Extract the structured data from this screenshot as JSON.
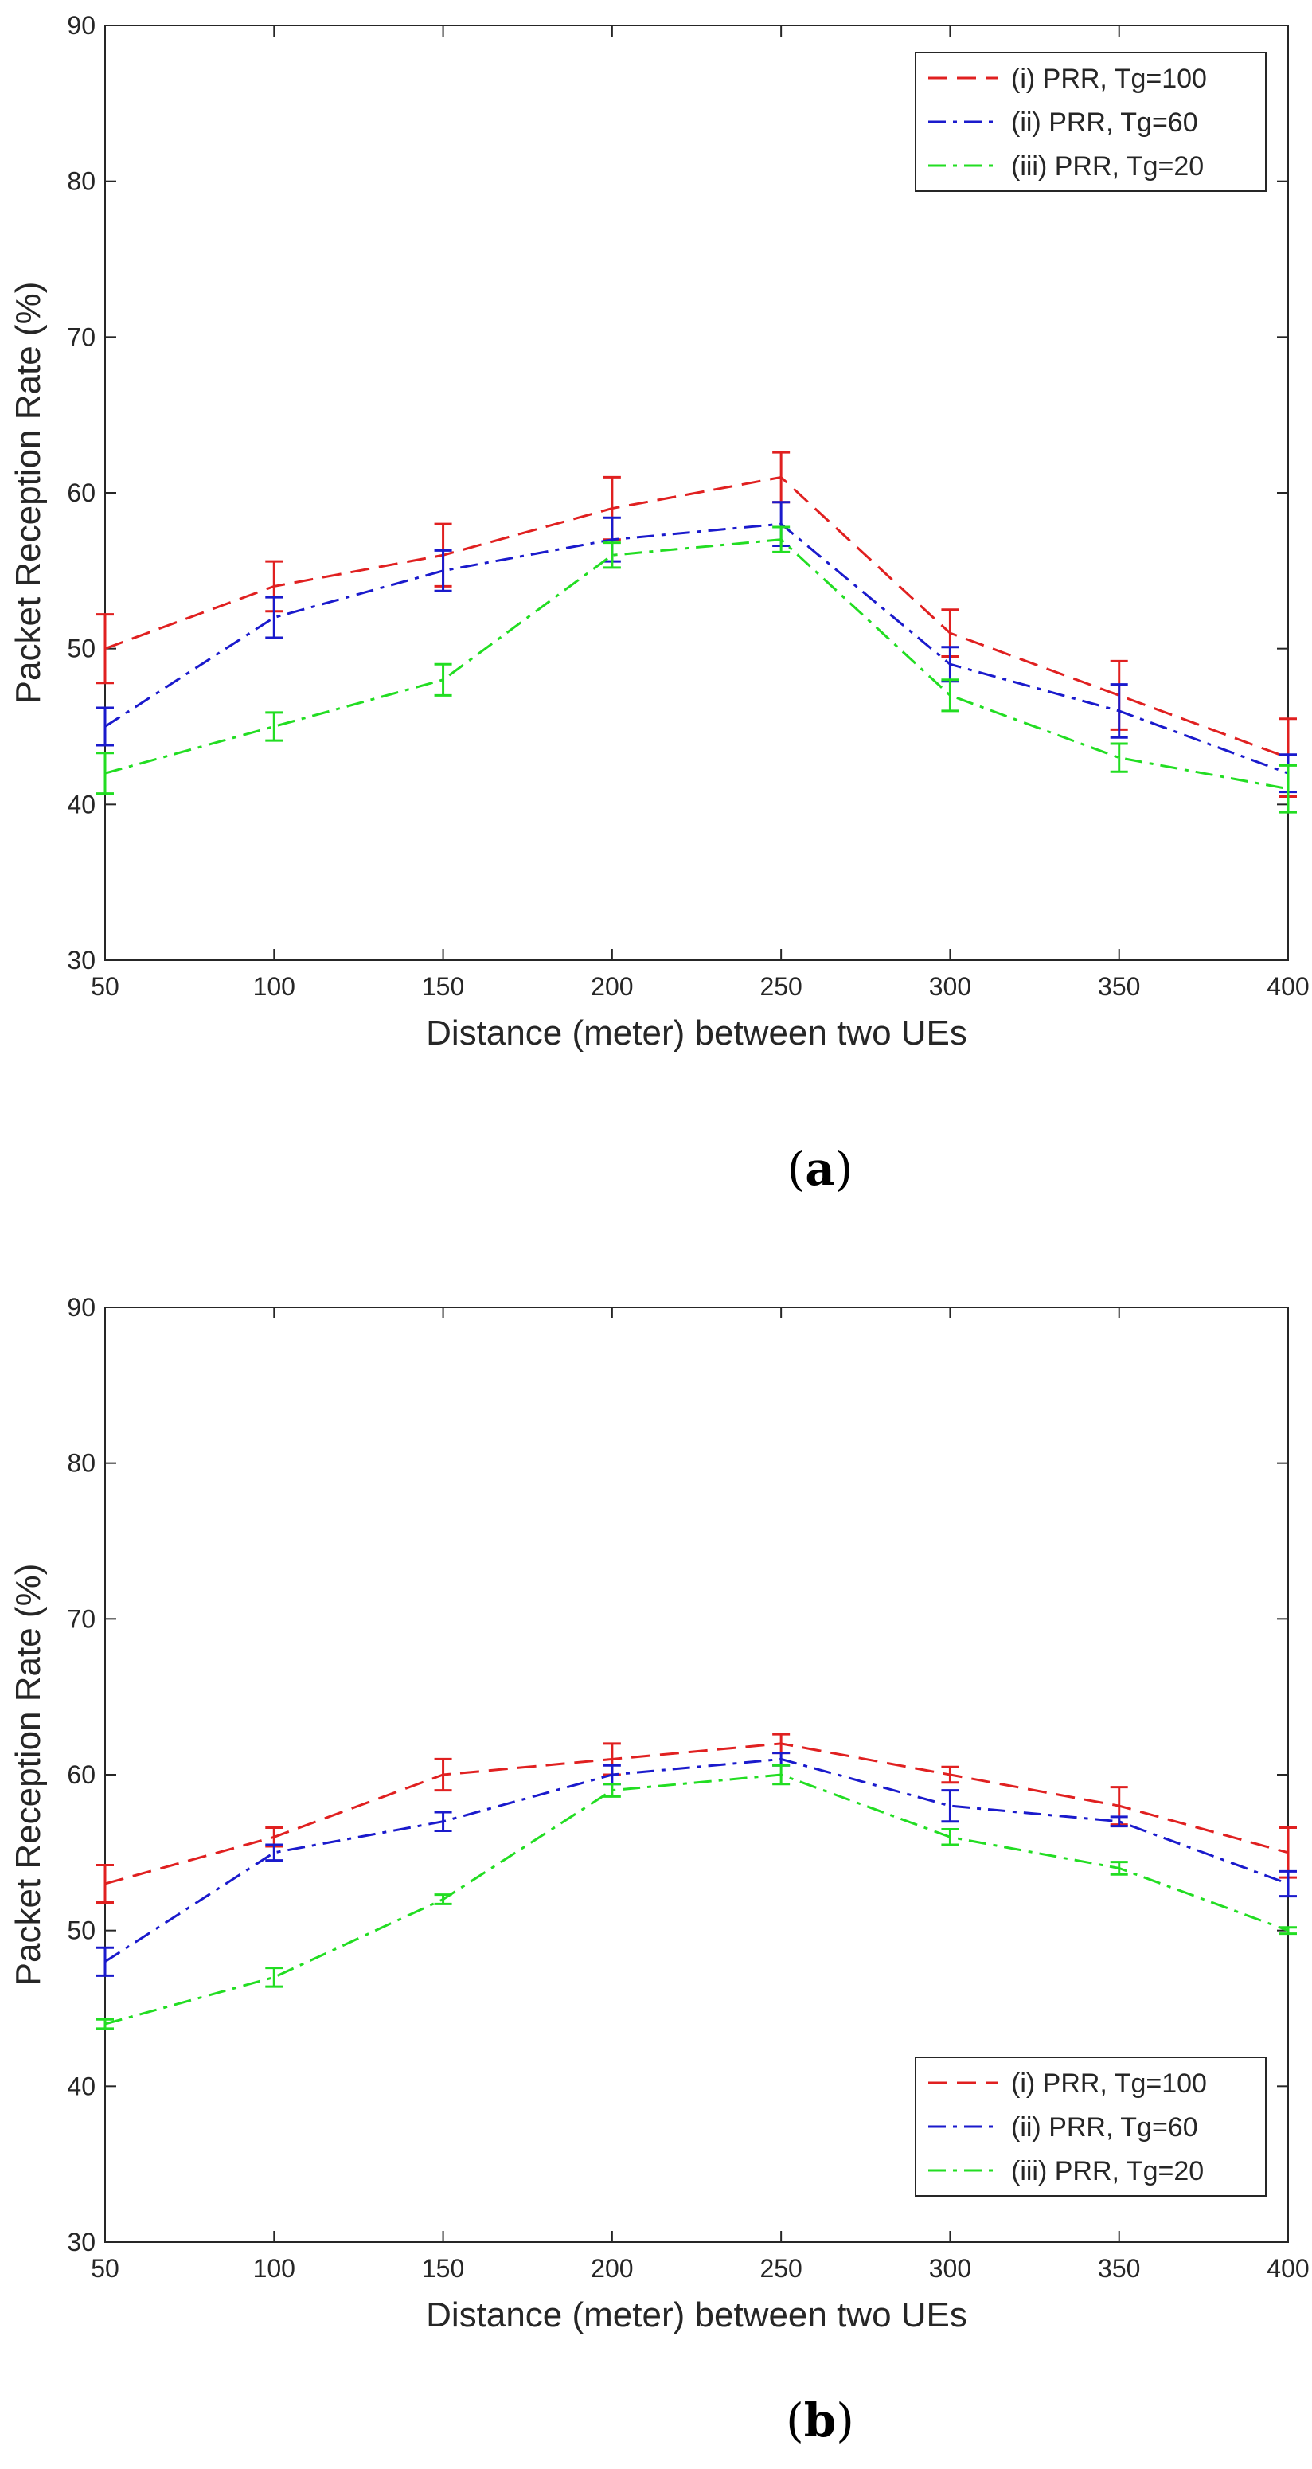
{
  "figure": {
    "panels": [
      {
        "caption_open": "(",
        "caption_label": "a",
        "caption_close": ")"
      },
      {
        "caption_open": "(",
        "caption_label": "b",
        "caption_close": ")"
      }
    ]
  },
  "chart_data": [
    {
      "type": "line",
      "title": "",
      "xlabel": "Distance (meter) between two UEs",
      "ylabel": "Packet Reception Rate (%)",
      "x": [
        50,
        100,
        150,
        200,
        250,
        300,
        350,
        400
      ],
      "xlim": [
        50,
        400
      ],
      "ylim": [
        30,
        90
      ],
      "xticks": [
        50,
        100,
        150,
        200,
        250,
        300,
        350,
        400
      ],
      "yticks": [
        30,
        40,
        50,
        60,
        70,
        80,
        90
      ],
      "legend_position": "top-right",
      "series": [
        {
          "name": "(i) PRR, Tg=100",
          "color": "#e02020",
          "dash": "dashed",
          "values": [
            50,
            54,
            56,
            59,
            61,
            51,
            47,
            43
          ],
          "errors": [
            2.2,
            1.6,
            2.0,
            2.0,
            1.6,
            1.5,
            2.2,
            2.5
          ]
        },
        {
          "name": "(ii) PRR, Tg=60",
          "color": "#1a1acc",
          "dash": "dashdot",
          "values": [
            45,
            52,
            55,
            57,
            58,
            49,
            46,
            42
          ],
          "errors": [
            1.2,
            1.3,
            1.3,
            1.4,
            1.4,
            1.1,
            1.7,
            1.2
          ]
        },
        {
          "name": "(iii) PRR, Tg=20",
          "color": "#22dd22",
          "dash": "dashdot",
          "values": [
            42,
            45,
            48,
            56,
            57,
            47,
            43,
            41
          ],
          "errors": [
            1.3,
            0.9,
            1.0,
            0.8,
            0.8,
            1.0,
            0.9,
            1.5
          ]
        }
      ]
    },
    {
      "type": "line",
      "title": "",
      "xlabel": "Distance (meter) between two UEs",
      "ylabel": "Packet Reception Rate (%)",
      "x": [
        50,
        100,
        150,
        200,
        250,
        300,
        350,
        400
      ],
      "xlim": [
        50,
        400
      ],
      "ylim": [
        30,
        90
      ],
      "xticks": [
        50,
        100,
        150,
        200,
        250,
        300,
        350,
        400
      ],
      "yticks": [
        30,
        40,
        50,
        60,
        70,
        80,
        90
      ],
      "legend_position": "bottom-right",
      "series": [
        {
          "name": "(i) PRR, Tg=100",
          "color": "#e02020",
          "dash": "dashed",
          "values": [
            53,
            56,
            60,
            61,
            62,
            60,
            58,
            55
          ],
          "errors": [
            1.2,
            0.6,
            1.0,
            1.0,
            0.6,
            0.5,
            1.2,
            1.6
          ]
        },
        {
          "name": "(ii) PRR, Tg=60",
          "color": "#1a1acc",
          "dash": "dashdot",
          "values": [
            48,
            55,
            57,
            60,
            61,
            58,
            57,
            53
          ],
          "errors": [
            0.9,
            0.5,
            0.6,
            0.6,
            0.4,
            1.0,
            0.3,
            0.8
          ]
        },
        {
          "name": "(iii) PRR, Tg=20",
          "color": "#22dd22",
          "dash": "dashdot",
          "values": [
            44,
            47,
            52,
            59,
            60,
            56,
            54,
            50
          ],
          "errors": [
            0.3,
            0.6,
            0.3,
            0.4,
            0.6,
            0.5,
            0.4,
            0.2
          ]
        }
      ]
    }
  ]
}
